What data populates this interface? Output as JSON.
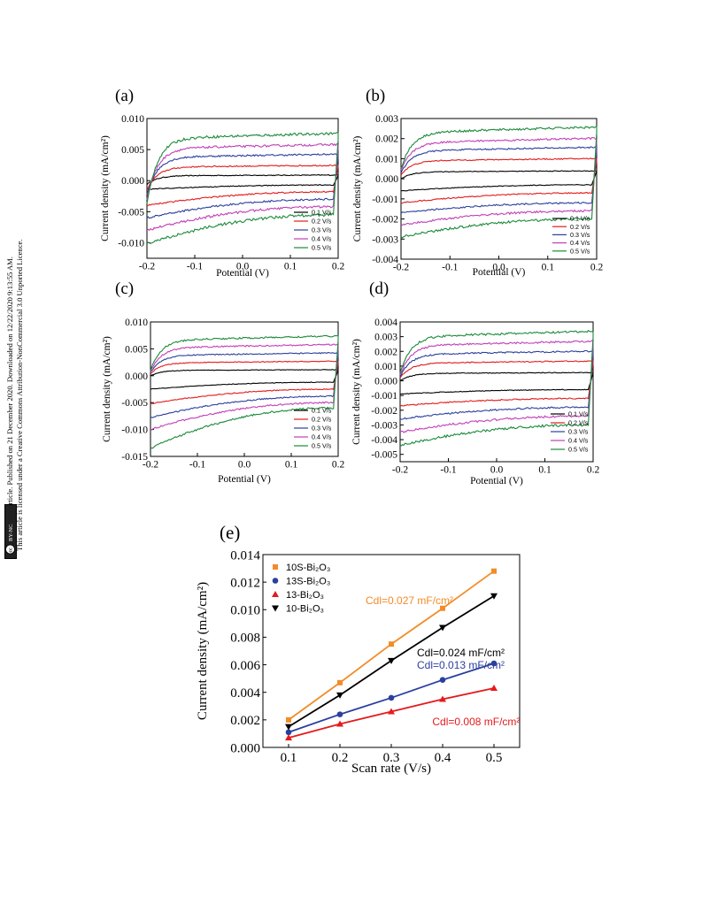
{
  "sidebar": {
    "line1": "Open Access Article. Published on 21 December 2020. Downloaded on 12/22/2020 9:13:55 AM.",
    "line2": "This article is licensed under a Creative Commons Attribution-NonCommercial 3.0 Unported Licence.",
    "badge_cc": "cc",
    "badge_text": "BY-NC"
  },
  "chart_data": [
    {
      "id": "a",
      "type": "line",
      "panel_label": "(a)",
      "xlabel": "Potential (V)",
      "ylabel": "Current density (mA/cm²)",
      "xlim": [
        -0.2,
        0.2
      ],
      "ylim": [
        -0.0125,
        0.01
      ],
      "xticks": [
        "-0.2",
        "-0.1",
        "0.0",
        "0.1",
        "0.2"
      ],
      "xtick_values": [
        -0.2,
        -0.1,
        0.0,
        0.1,
        0.2
      ],
      "yticks": [
        "0.010",
        "0.005",
        "0.000",
        "-0.005",
        "-0.010"
      ],
      "ytick_values": [
        0.01,
        0.005,
        0.0,
        -0.005,
        -0.01
      ],
      "legend_position": "bottom-right",
      "series": [
        {
          "name": "0.1 V/s",
          "color": "#000000",
          "anodic_plateau": 0.0008,
          "anodic_start": -0.0006,
          "cathodic_plateau": -0.0007,
          "cathodic_start": -0.0014
        },
        {
          "name": "0.2 V/s",
          "color": "#e41a1c",
          "anodic_plateau": 0.0022,
          "anodic_start": -0.0015,
          "cathodic_plateau": -0.0018,
          "cathodic_start": -0.004
        },
        {
          "name": "0.3 V/s",
          "color": "#2b3f9e",
          "anodic_plateau": 0.0038,
          "anodic_start": -0.0022,
          "cathodic_plateau": -0.003,
          "cathodic_start": -0.006
        },
        {
          "name": "0.4 V/s",
          "color": "#c23fb8",
          "anodic_plateau": 0.0052,
          "anodic_start": -0.003,
          "cathodic_plateau": -0.0042,
          "cathodic_start": -0.008
        },
        {
          "name": "0.5 V/s",
          "color": "#1a8a3a",
          "anodic_plateau": 0.0068,
          "anodic_start": -0.0038,
          "cathodic_plateau": -0.0055,
          "cathodic_start": -0.0102
        }
      ]
    },
    {
      "id": "b",
      "type": "line",
      "panel_label": "(b)",
      "xlabel": "Potential (V)",
      "ylabel": "Current density (mA/cm²)",
      "xlim": [
        -0.2,
        0.2
      ],
      "ylim": [
        -0.004,
        0.003
      ],
      "xticks": [
        "-0.2",
        "-0.1",
        "0.0",
        "0.1",
        "0.2"
      ],
      "xtick_values": [
        -0.2,
        -0.1,
        0.0,
        0.1,
        0.2
      ],
      "yticks": [
        "0.003",
        "0.002",
        "0.001",
        "0.000",
        "-0.001",
        "-0.002",
        "-0.003",
        "-0.004"
      ],
      "ytick_values": [
        0.003,
        0.002,
        0.001,
        0.0,
        -0.001,
        -0.002,
        -0.003,
        -0.004
      ],
      "legend_position": "bottom-right",
      "series": [
        {
          "name": "0.1 V/s",
          "color": "#000000",
          "anodic_plateau": 0.00035,
          "anodic_start": 0.0,
          "cathodic_plateau": -0.0003,
          "cathodic_start": -0.0006
        },
        {
          "name": "0.2 V/s",
          "color": "#e41a1c",
          "anodic_plateau": 0.0009,
          "anodic_start": 0.0002,
          "cathodic_plateau": -0.0007,
          "cathodic_start": -0.0012
        },
        {
          "name": "0.3 V/s",
          "color": "#2b3f9e",
          "anodic_plateau": 0.0014,
          "anodic_start": 0.0003,
          "cathodic_plateau": -0.0012,
          "cathodic_start": -0.0017
        },
        {
          "name": "0.4 V/s",
          "color": "#c23fb8",
          "anodic_plateau": 0.0018,
          "anodic_start": 0.0004,
          "cathodic_plateau": -0.0016,
          "cathodic_start": -0.0023
        },
        {
          "name": "0.5 V/s",
          "color": "#1a8a3a",
          "anodic_plateau": 0.0023,
          "anodic_start": 0.0005,
          "cathodic_plateau": -0.002,
          "cathodic_start": -0.0029
        }
      ]
    },
    {
      "id": "c",
      "type": "line",
      "panel_label": "(c)",
      "xlabel": "Potential (V)",
      "ylabel": "Current density (mA/cm²)",
      "xlim": [
        -0.2,
        0.2
      ],
      "ylim": [
        -0.015,
        0.01
      ],
      "xticks": [
        "-0.2",
        "-0.1",
        "0.0",
        "0.1",
        "0.2"
      ],
      "xtick_values": [
        -0.2,
        -0.1,
        0.0,
        0.1,
        0.2
      ],
      "yticks": [
        "0.010",
        "0.005",
        "0.000",
        "-0.005",
        "-0.010",
        "-0.015"
      ],
      "ytick_values": [
        0.01,
        0.005,
        0.0,
        -0.005,
        -0.01,
        -0.015
      ],
      "legend_position": "bottom-right",
      "series": [
        {
          "name": "0.1 V/s",
          "color": "#000000",
          "anodic_plateau": 0.001,
          "anodic_start": 0.0,
          "cathodic_plateau": -0.0012,
          "cathodic_start": -0.0025
        },
        {
          "name": "0.2 V/s",
          "color": "#e41a1c",
          "anodic_plateau": 0.0024,
          "anodic_start": 0.0004,
          "cathodic_plateau": -0.0025,
          "cathodic_start": -0.0052
        },
        {
          "name": "0.3 V/s",
          "color": "#2b3f9e",
          "anodic_plateau": 0.0038,
          "anodic_start": 0.0006,
          "cathodic_plateau": -0.0038,
          "cathodic_start": -0.0078
        },
        {
          "name": "0.4 V/s",
          "color": "#c23fb8",
          "anodic_plateau": 0.0052,
          "anodic_start": 0.0008,
          "cathodic_plateau": -0.005,
          "cathodic_start": -0.01
        },
        {
          "name": "0.5 V/s",
          "color": "#1a8a3a",
          "anodic_plateau": 0.0066,
          "anodic_start": 0.001,
          "cathodic_plateau": -0.006,
          "cathodic_start": -0.0135
        }
      ]
    },
    {
      "id": "d",
      "type": "line",
      "panel_label": "(d)",
      "xlabel": "Potential (V)",
      "ylabel": "Current density (mA/cm²)",
      "xlim": [
        -0.2,
        0.2
      ],
      "ylim": [
        -0.0055,
        0.004
      ],
      "xticks": [
        "-0.2",
        "-0.1",
        "0.0",
        "0.1",
        "0.2"
      ],
      "xtick_values": [
        -0.2,
        -0.1,
        0.0,
        0.1,
        0.2
      ],
      "yticks": [
        "0.004",
        "0.003",
        "0.002",
        "0.001",
        "0.000",
        "-0.001",
        "-0.002",
        "-0.003",
        "-0.004",
        "-0.005"
      ],
      "ytick_values": [
        0.004,
        0.003,
        0.002,
        0.001,
        0.0,
        -0.001,
        -0.002,
        -0.003,
        -0.004,
        -0.005
      ],
      "legend_position": "bottom-right",
      "series": [
        {
          "name": "0.1 V/s",
          "color": "#000000",
          "anodic_plateau": 0.0005,
          "anodic_start": 0.0,
          "cathodic_plateau": -0.0006,
          "cathodic_start": -0.0009
        },
        {
          "name": "0.2 V/s",
          "color": "#e41a1c",
          "anodic_plateau": 0.0012,
          "anodic_start": 0.0002,
          "cathodic_plateau": -0.0012,
          "cathodic_start": -0.0017
        },
        {
          "name": "0.3 V/s",
          "color": "#2b3f9e",
          "anodic_plateau": 0.0018,
          "anodic_start": 0.0003,
          "cathodic_plateau": -0.0018,
          "cathodic_start": -0.0026
        },
        {
          "name": "0.4 V/s",
          "color": "#c23fb8",
          "anodic_plateau": 0.0024,
          "anodic_start": 0.0004,
          "cathodic_plateau": -0.0024,
          "cathodic_start": -0.0035
        },
        {
          "name": "0.5 V/s",
          "color": "#1a8a3a",
          "anodic_plateau": 0.003,
          "anodic_start": 0.0005,
          "cathodic_plateau": -0.003,
          "cathodic_start": -0.0044
        }
      ]
    },
    {
      "id": "e",
      "type": "line",
      "panel_label": "(e)",
      "xlabel": "Scan rate (V/s)",
      "ylabel": "Current density (mA/cm²)",
      "xlim": [
        0.05,
        0.55
      ],
      "ylim": [
        0.0,
        0.014
      ],
      "xticks": [
        "0.1",
        "0.2",
        "0.3",
        "0.4",
        "0.5"
      ],
      "xtick_values": [
        0.1,
        0.2,
        0.3,
        0.4,
        0.5
      ],
      "yticks": [
        "0.014",
        "0.012",
        "0.010",
        "0.008",
        "0.006",
        "0.004",
        "0.002",
        "0.000"
      ],
      "ytick_values": [
        0.014,
        0.012,
        0.01,
        0.008,
        0.006,
        0.004,
        0.002,
        0.0
      ],
      "legend_position": "top-left",
      "x": [
        0.1,
        0.2,
        0.3,
        0.4,
        0.5
      ],
      "series": [
        {
          "name": "10S-Bi₂O₃",
          "color": "#f28c28",
          "marker": "square",
          "values": [
            0.002,
            0.0047,
            0.0075,
            0.0101,
            0.0128
          ]
        },
        {
          "name": "13S-Bi₂O₃",
          "color": "#2b3f9e",
          "marker": "circle",
          "values": [
            0.0011,
            0.0024,
            0.0036,
            0.0049,
            0.0061
          ]
        },
        {
          "name": "13-Bi₂O₃",
          "color": "#e41a1c",
          "marker": "triangle-up",
          "values": [
            0.0007,
            0.0017,
            0.0026,
            0.0035,
            0.0043
          ]
        },
        {
          "name": "10-Bi₂O₃",
          "color": "#000000",
          "marker": "triangle-down",
          "values": [
            0.0015,
            0.0038,
            0.0063,
            0.0087,
            0.011
          ]
        }
      ],
      "annotations": [
        {
          "text": "Cdl=0.027 mF/cm²",
          "color": "#f28c28",
          "x": 0.25,
          "y": 0.0104
        },
        {
          "text": "Cdl=0.024 mF/cm²",
          "color": "#000000",
          "x": 0.35,
          "y": 0.0066
        },
        {
          "text": "Cdl=0.013 mF/cm²",
          "color": "#2b3f9e",
          "x": 0.35,
          "y": 0.0057
        },
        {
          "text": "Cdl=0.008 mF/cm²",
          "color": "#e41a1c",
          "x": 0.38,
          "y": 0.0016
        }
      ]
    }
  ]
}
